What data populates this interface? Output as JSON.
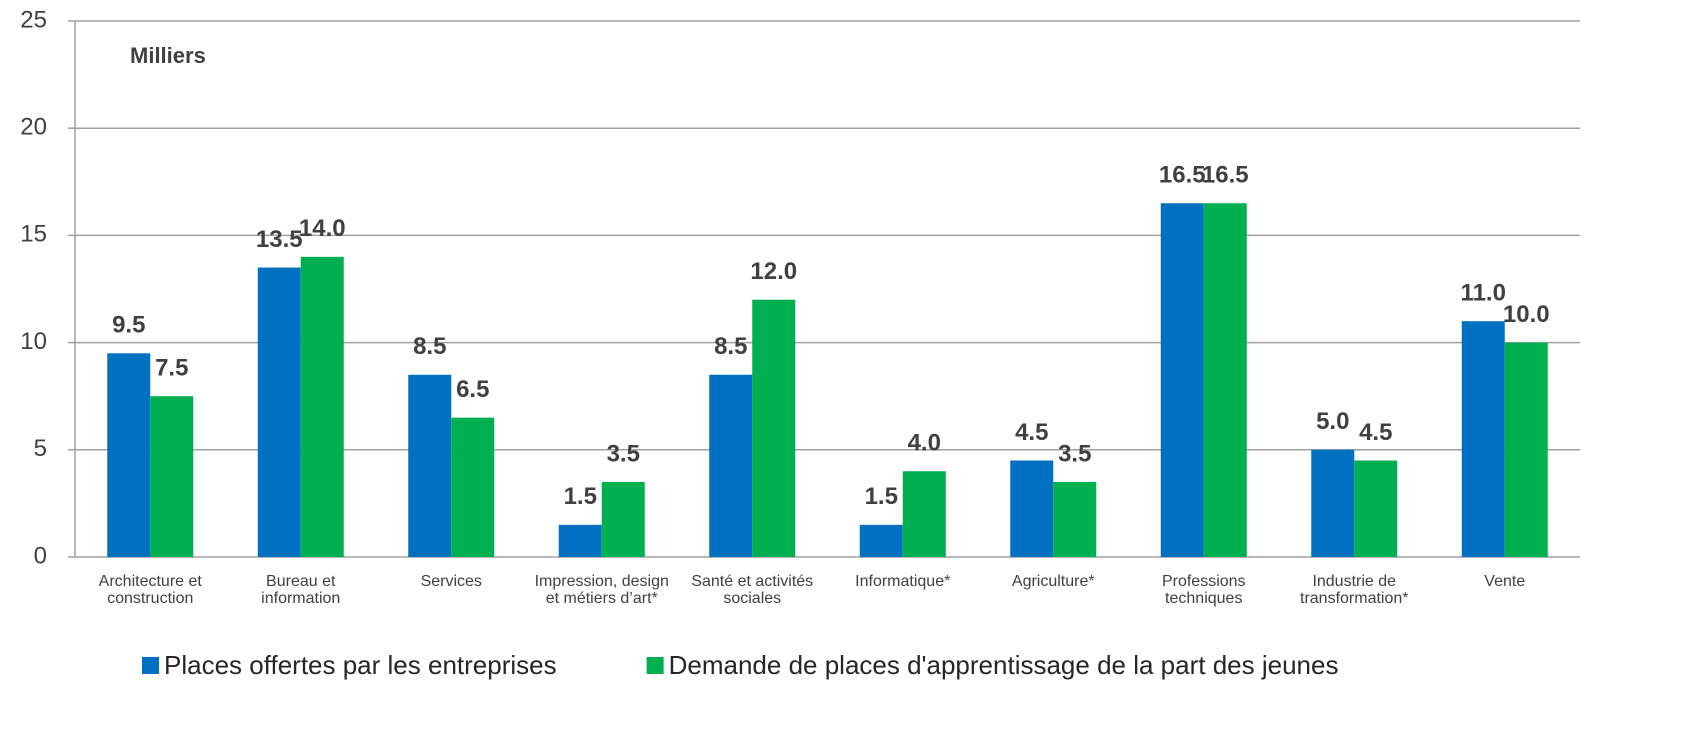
{
  "chart_data": {
    "type": "bar",
    "annotation": "Milliers",
    "categories": [
      "Architecture et construction",
      "Bureau et information",
      "Services",
      "Impression, design et métiers d’art*",
      "Santé et activités sociales",
      "Informatique*",
      "Agriculture*",
      "Professions techniques",
      "Industrie de transformation*",
      "Vente"
    ],
    "series": [
      {
        "name": "Places offertes par les entreprises",
        "color": "#0070c0",
        "values": [
          9.5,
          13.5,
          8.5,
          1.5,
          8.5,
          1.5,
          4.5,
          16.5,
          5,
          11
        ],
        "value_labels": [
          "9.5",
          "13.5",
          "8.5",
          "1.5",
          "8.5",
          "1.5",
          "4.5",
          "16.5",
          "5.0",
          "11.0"
        ]
      },
      {
        "name": "Demande de places d'apprentissage de la part des jeunes",
        "color": "#00b050",
        "values": [
          7.5,
          14,
          6.5,
          3.5,
          12,
          4,
          3.5,
          16.5,
          4.5,
          10
        ],
        "value_labels": [
          "7.5",
          "14.0",
          "6.5",
          "3.5",
          "12.0",
          "4.0",
          "3.5",
          "16.5",
          "4.5",
          "10.0"
        ]
      }
    ],
    "ylim": [
      0,
      25
    ],
    "yticks": [
      0,
      5,
      10,
      15,
      20,
      25
    ],
    "grid": true,
    "legend": "bottom"
  }
}
